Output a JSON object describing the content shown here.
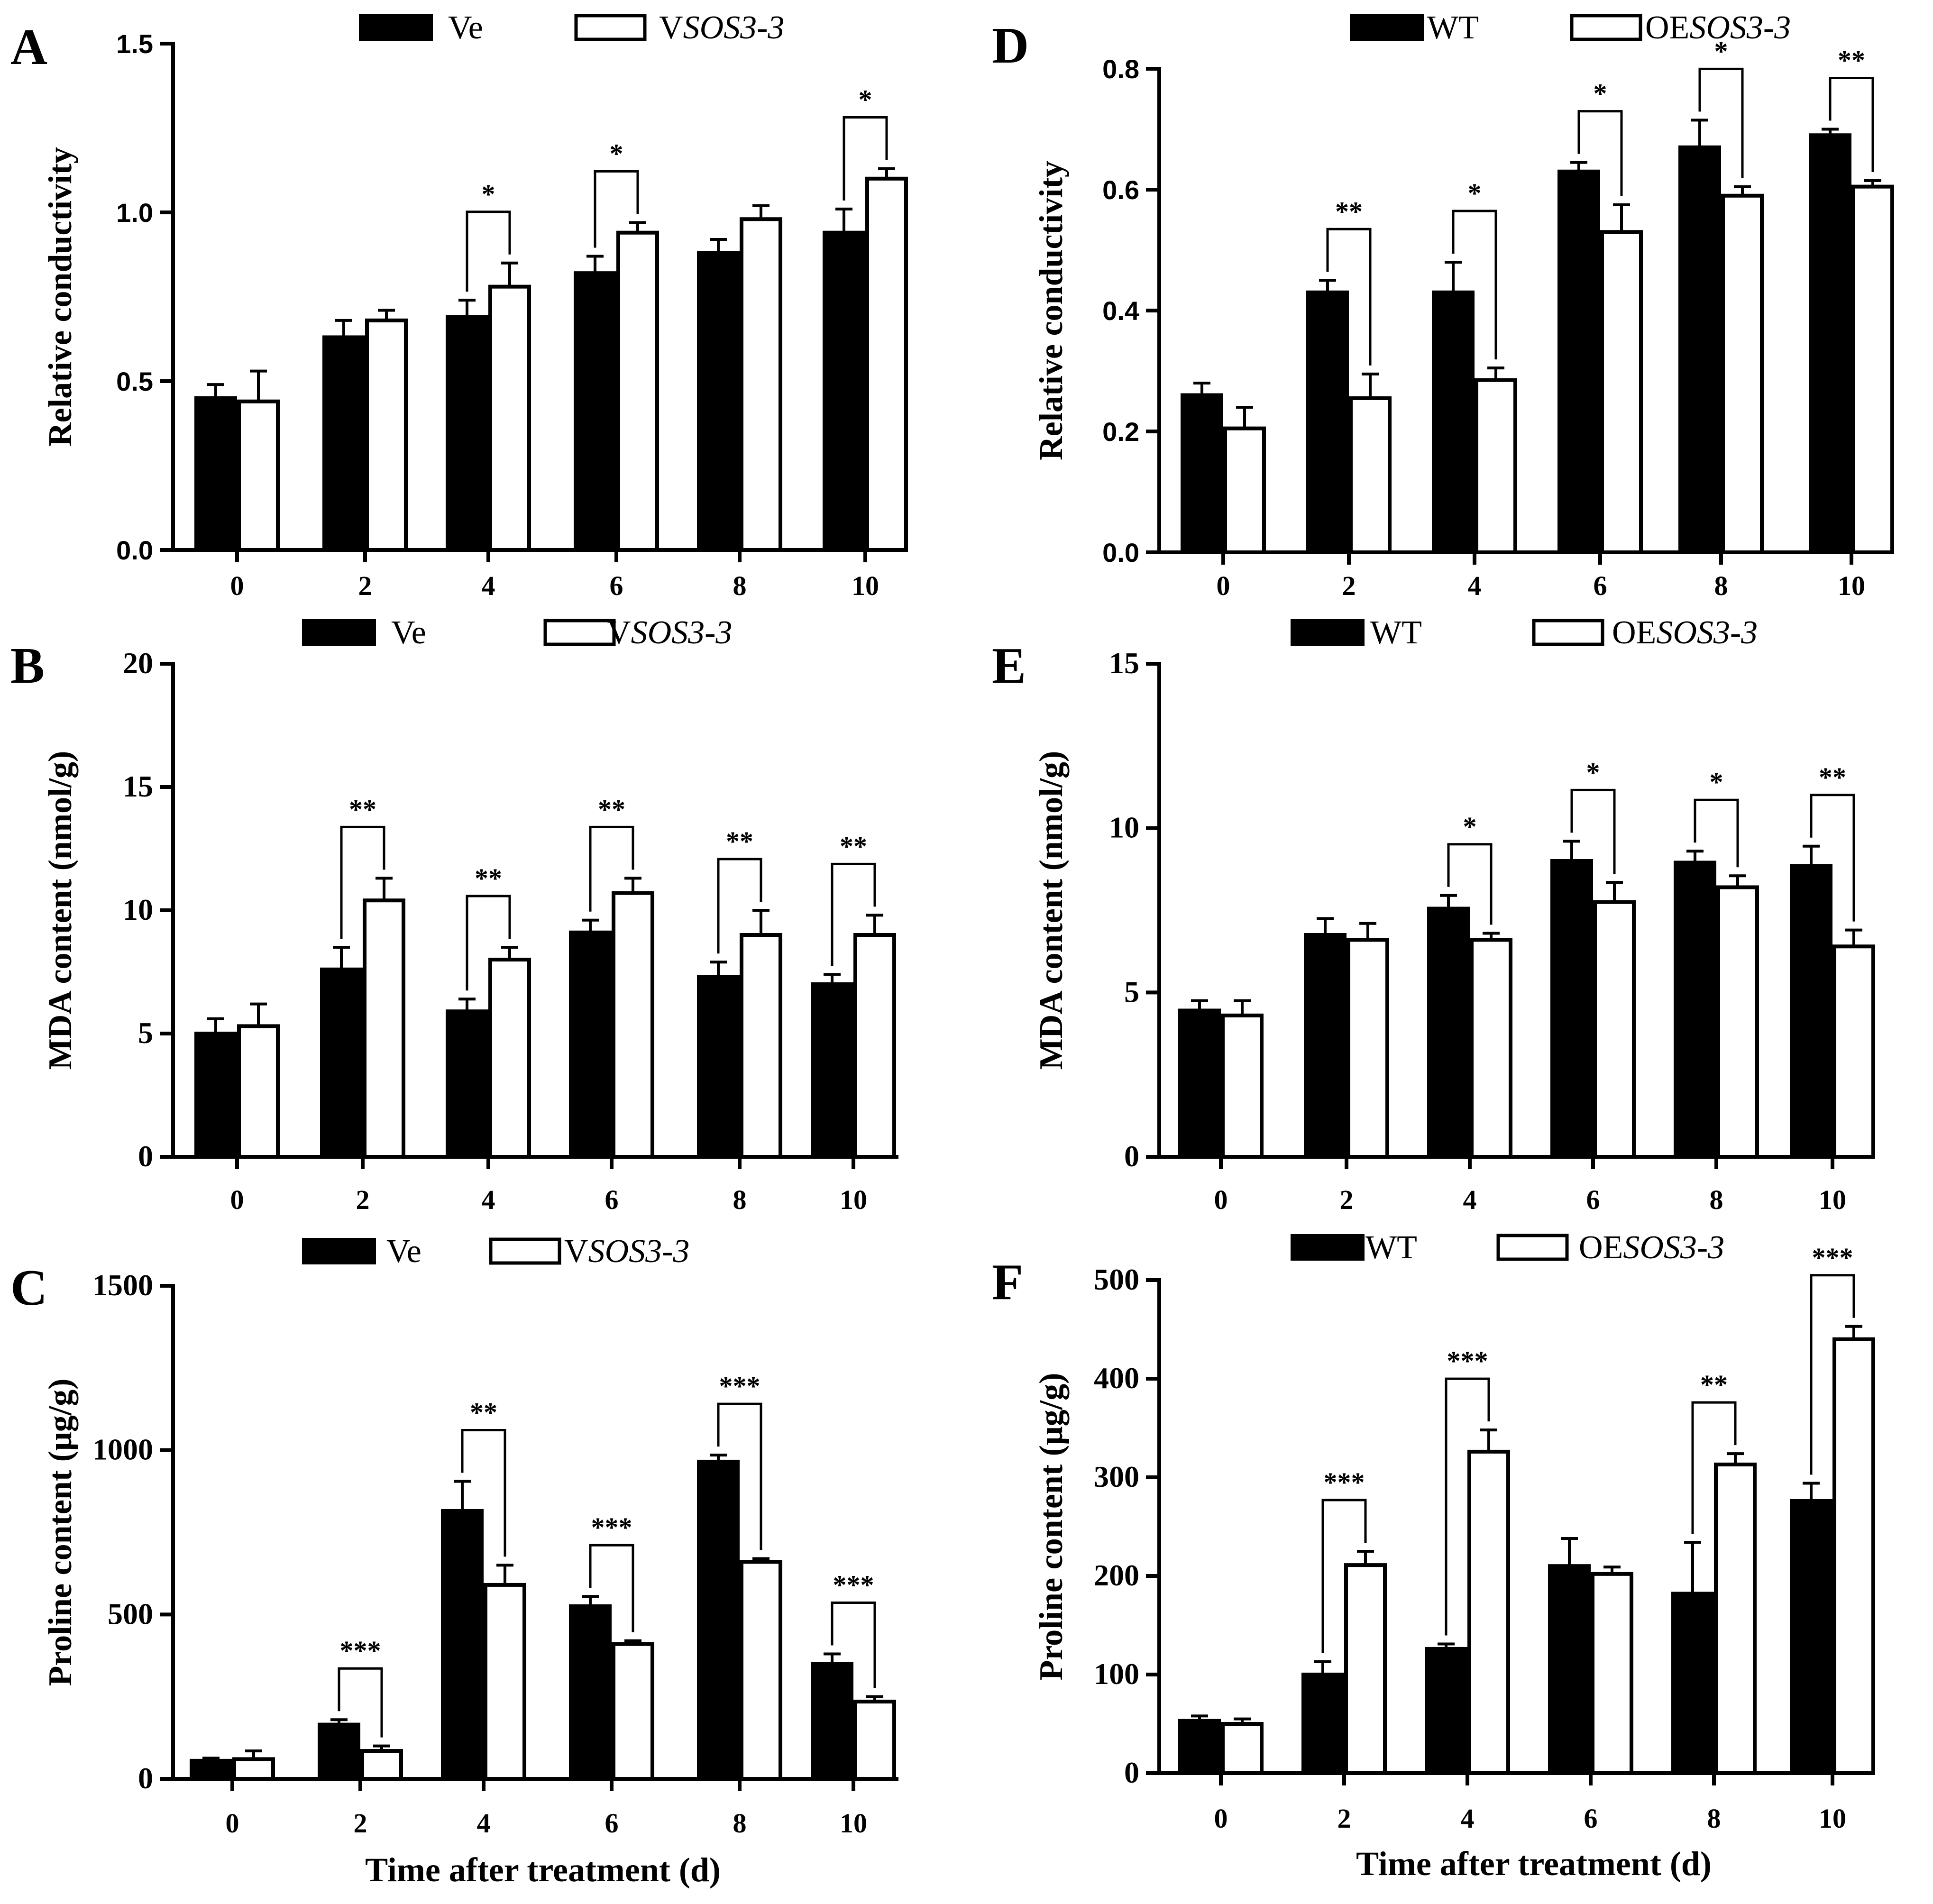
{
  "chart_data": [
    {
      "panel": "A",
      "type": "bar",
      "categories": [
        "0",
        "2",
        "4",
        "6",
        "8",
        "10"
      ],
      "series": [
        {
          "name": "Ve",
          "values": [
            0.45,
            0.63,
            0.69,
            0.82,
            0.88,
            0.94
          ],
          "errors": [
            0.04,
            0.05,
            0.05,
            0.05,
            0.04,
            0.07
          ]
        },
        {
          "name": "VSOS3-3",
          "values": [
            0.44,
            0.68,
            0.78,
            0.94,
            0.98,
            1.1
          ],
          "errors": [
            0.09,
            0.03,
            0.07,
            0.03,
            0.04,
            0.03
          ]
        }
      ],
      "legend": [
        {
          "prefix": "Ve",
          "italic": ""
        },
        {
          "prefix": "V",
          "italic": "SOS3-3"
        }
      ],
      "ylim": [
        0,
        1.5
      ],
      "yticks": [
        "0.0",
        "0.5",
        "1.0",
        "1.5"
      ],
      "ylabel": "Relative conductivity",
      "xlabel": "",
      "significance": [
        {
          "index": 2,
          "label": "*"
        },
        {
          "index": 3,
          "label": "*"
        },
        {
          "index": 5,
          "label": "*"
        }
      ]
    },
    {
      "panel": "B",
      "type": "bar",
      "categories": [
        "0",
        "2",
        "4",
        "6",
        "8",
        "10"
      ],
      "series": [
        {
          "name": "Ve",
          "values": [
            5.0,
            7.6,
            5.9,
            9.1,
            7.3,
            7.0
          ],
          "errors": [
            0.6,
            0.9,
            0.5,
            0.5,
            0.6,
            0.4
          ]
        },
        {
          "name": "VSOS3-3",
          "values": [
            5.3,
            10.4,
            8.0,
            10.7,
            9.0,
            9.0
          ],
          "errors": [
            0.9,
            0.9,
            0.5,
            0.6,
            1.0,
            0.8
          ]
        }
      ],
      "legend": [
        {
          "prefix": "Ve",
          "italic": ""
        },
        {
          "prefix": "V",
          "italic": "SOS3-3"
        }
      ],
      "ylim": [
        0,
        20
      ],
      "yticks": [
        "0",
        "5",
        "10",
        "15",
        "20"
      ],
      "ylabel": "MDA content (nmol/g)",
      "xlabel": "",
      "significance": [
        {
          "index": 1,
          "label": "**"
        },
        {
          "index": 2,
          "label": "**"
        },
        {
          "index": 3,
          "label": "**"
        },
        {
          "index": 4,
          "label": "**"
        },
        {
          "index": 5,
          "label": "**"
        }
      ]
    },
    {
      "panel": "C",
      "type": "bar",
      "categories": [
        "0",
        "2",
        "4",
        "6",
        "8",
        "10"
      ],
      "series": [
        {
          "name": "Ve",
          "values": [
            55,
            165,
            815,
            525,
            965,
            350
          ],
          "errors": [
            8,
            15,
            90,
            30,
            20,
            30
          ]
        },
        {
          "name": "VSOS3-3",
          "values": [
            60,
            85,
            590,
            410,
            660,
            235
          ],
          "errors": [
            25,
            15,
            60,
            10,
            10,
            15
          ]
        }
      ],
      "legend": [
        {
          "prefix": "Ve",
          "italic": ""
        },
        {
          "prefix": "V",
          "italic": "SOS3-3"
        }
      ],
      "ylim": [
        0,
        1500
      ],
      "yticks": [
        "0",
        "500",
        "1000",
        "1500"
      ],
      "ylabel": "Proline content (μg/g)",
      "xlabel": "Time after treatment (d)",
      "significance": [
        {
          "index": 1,
          "label": "***"
        },
        {
          "index": 2,
          "label": "**"
        },
        {
          "index": 3,
          "label": "***"
        },
        {
          "index": 4,
          "label": "***"
        },
        {
          "index": 5,
          "label": "***"
        }
      ]
    },
    {
      "panel": "D",
      "type": "bar",
      "categories": [
        "0",
        "2",
        "4",
        "6",
        "8",
        "10"
      ],
      "series": [
        {
          "name": "WT",
          "values": [
            0.26,
            0.43,
            0.43,
            0.63,
            0.67,
            0.69
          ],
          "errors": [
            0.02,
            0.02,
            0.05,
            0.015,
            0.045,
            0.01
          ]
        },
        {
          "name": "OESOS3-3",
          "values": [
            0.205,
            0.255,
            0.285,
            0.53,
            0.59,
            0.605
          ],
          "errors": [
            0.035,
            0.04,
            0.02,
            0.045,
            0.015,
            0.01
          ]
        }
      ],
      "legend": [
        {
          "prefix": "WT",
          "italic": ""
        },
        {
          "prefix": "OE",
          "italic": "SOS3-3"
        }
      ],
      "ylim": [
        0,
        0.8
      ],
      "yticks": [
        "0.0",
        "0.2",
        "0.4",
        "0.6",
        "0.8"
      ],
      "ylabel": "Relative conductivity",
      "xlabel": "",
      "significance": [
        {
          "index": 1,
          "label": "**"
        },
        {
          "index": 2,
          "label": "*"
        },
        {
          "index": 3,
          "label": "*"
        },
        {
          "index": 4,
          "label": "*"
        },
        {
          "index": 5,
          "label": "**"
        }
      ]
    },
    {
      "panel": "E",
      "type": "bar",
      "categories": [
        "0",
        "2",
        "4",
        "6",
        "8",
        "10"
      ],
      "series": [
        {
          "name": "WT",
          "values": [
            4.45,
            6.75,
            7.55,
            9.0,
            8.95,
            8.85
          ],
          "errors": [
            0.3,
            0.5,
            0.4,
            0.6,
            0.35,
            0.6
          ]
        },
        {
          "name": "OESOS3-3",
          "values": [
            4.3,
            6.6,
            6.6,
            7.75,
            8.2,
            6.4
          ],
          "errors": [
            0.45,
            0.5,
            0.2,
            0.6,
            0.35,
            0.5
          ]
        }
      ],
      "legend": [
        {
          "prefix": "WT",
          "italic": ""
        },
        {
          "prefix": "OE",
          "italic": "SOS3-3"
        }
      ],
      "ylim": [
        0,
        15
      ],
      "yticks": [
        "0",
        "5",
        "10",
        "15"
      ],
      "ylabel": "MDA content (nmol/g)",
      "xlabel": "",
      "significance": [
        {
          "index": 2,
          "label": "*"
        },
        {
          "index": 3,
          "label": "*"
        },
        {
          "index": 4,
          "label": "*"
        },
        {
          "index": 5,
          "label": "**"
        }
      ]
    },
    {
      "panel": "F",
      "type": "bar",
      "categories": [
        "0",
        "2",
        "4",
        "6",
        "8",
        "10"
      ],
      "series": [
        {
          "name": "WT",
          "values": [
            53,
            100,
            126,
            210,
            182,
            276
          ],
          "errors": [
            5,
            13,
            5,
            28,
            52,
            18
          ]
        },
        {
          "name": "OESOS3-3",
          "values": [
            50,
            211,
            326,
            202,
            313,
            440
          ],
          "errors": [
            5,
            14,
            22,
            7,
            11,
            13
          ]
        }
      ],
      "legend": [
        {
          "prefix": "WT",
          "italic": ""
        },
        {
          "prefix": "OE",
          "italic": "SOS3-3"
        }
      ],
      "ylim": [
        0,
        500
      ],
      "yticks": [
        "0",
        "100",
        "200",
        "300",
        "400",
        "500"
      ],
      "ylabel": "Proline content (μg/g)",
      "xlabel": "Time after treatment (d)",
      "significance": [
        {
          "index": 1,
          "label": "***"
        },
        {
          "index": 2,
          "label": "***"
        },
        {
          "index": 4,
          "label": "**"
        },
        {
          "index": 5,
          "label": "***"
        }
      ]
    }
  ]
}
